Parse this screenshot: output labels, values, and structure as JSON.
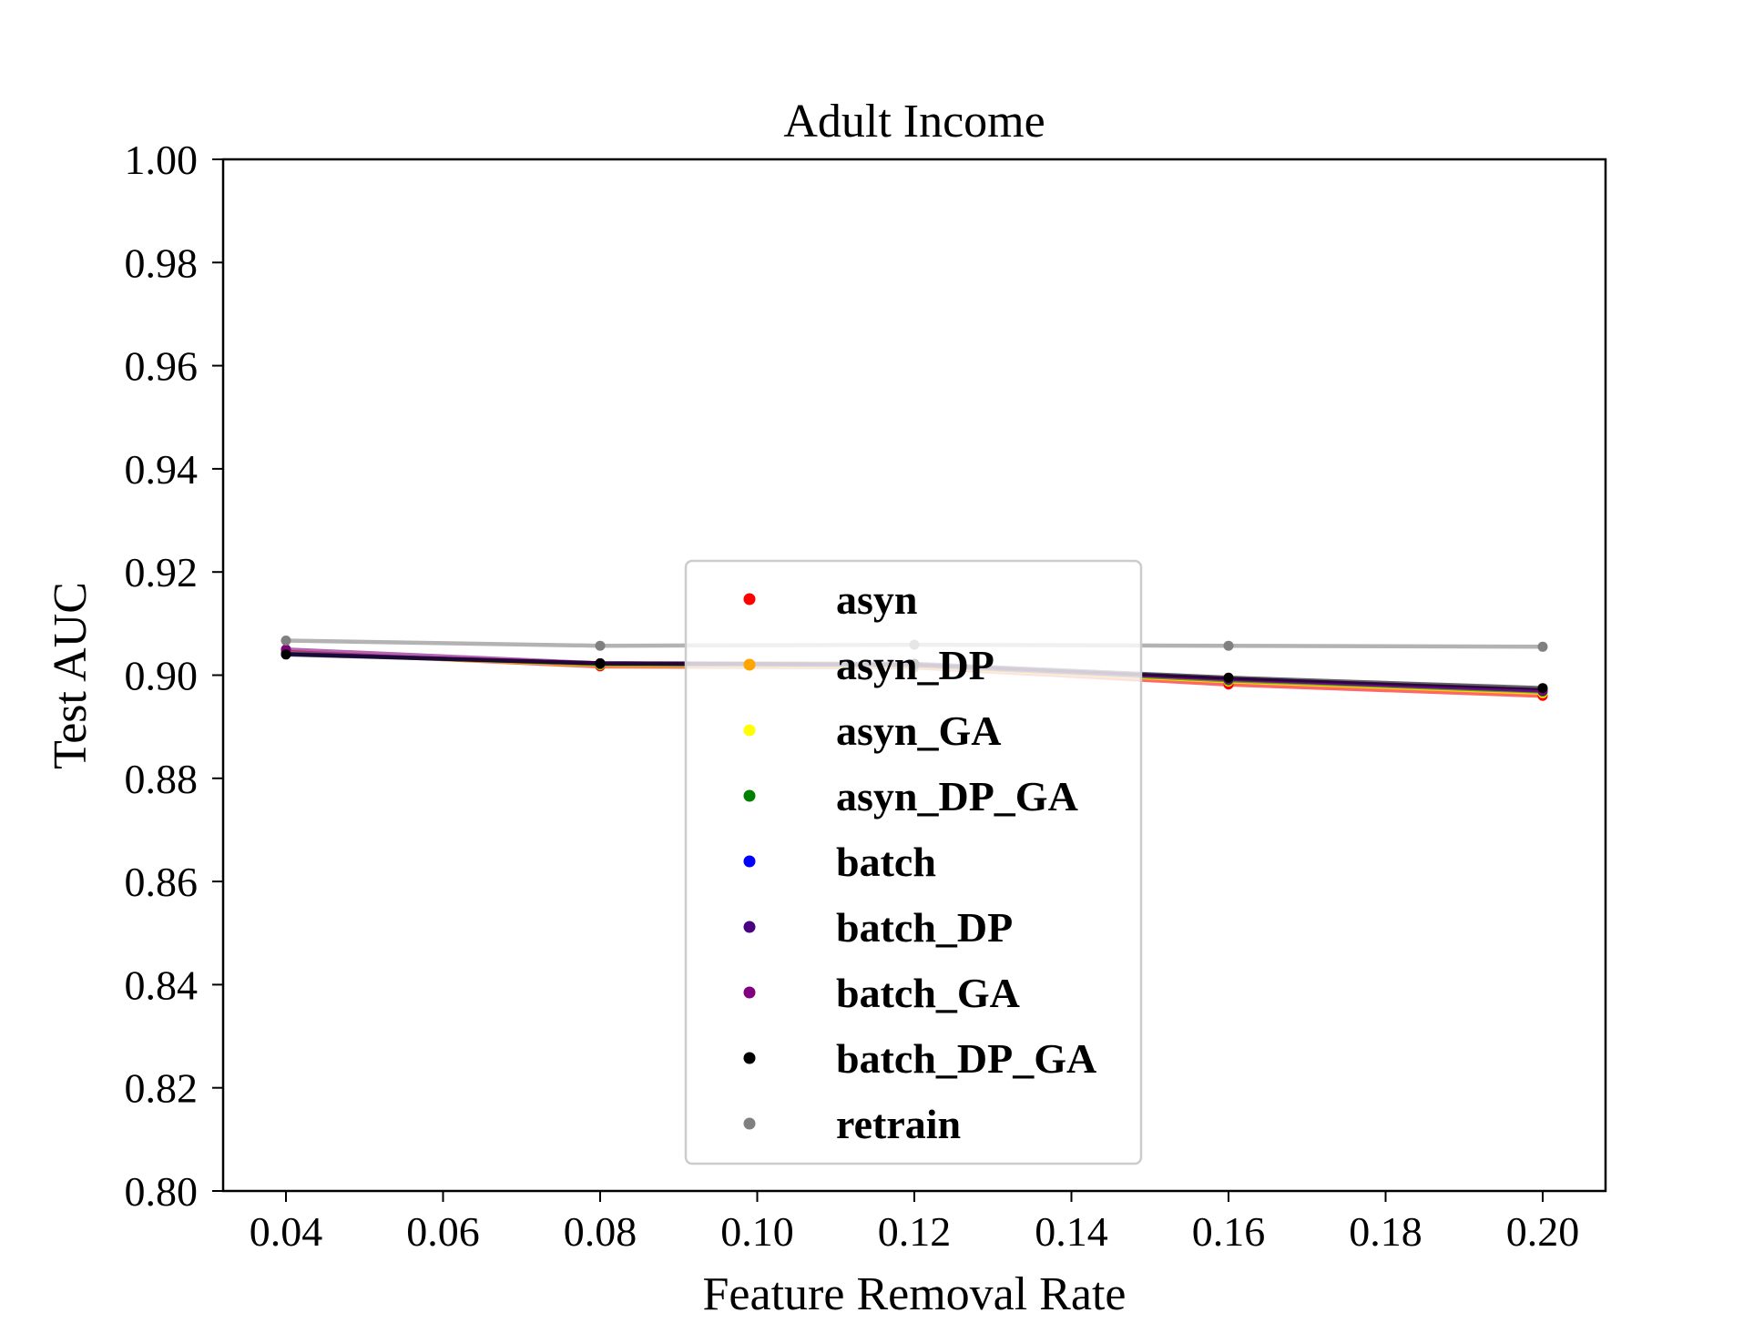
{
  "chart_data": {
    "type": "line",
    "title": "Adult Income",
    "xlabel": "Feature Removal Rate",
    "ylabel": "Test AUC",
    "xlim": [
      0.032,
      0.208
    ],
    "ylim": [
      0.8,
      1.0
    ],
    "x": [
      0.04,
      0.08,
      0.12,
      0.16,
      0.2
    ],
    "xticks": [
      0.04,
      0.06,
      0.08,
      0.1,
      0.12,
      0.14,
      0.16,
      0.18,
      0.2
    ],
    "xtick_labels": [
      "0.04",
      "0.06",
      "0.08",
      "0.10",
      "0.12",
      "0.14",
      "0.16",
      "0.18",
      "0.20"
    ],
    "yticks": [
      0.8,
      0.82,
      0.84,
      0.86,
      0.88,
      0.9,
      0.92,
      0.94,
      0.96,
      0.98,
      1.0
    ],
    "ytick_labels": [
      "0.80",
      "0.82",
      "0.84",
      "0.86",
      "0.88",
      "0.90",
      "0.92",
      "0.94",
      "0.96",
      "0.98",
      "1.00"
    ],
    "grid": false,
    "legend_position": "center",
    "series": [
      {
        "name": "asyn",
        "color": "#ff0000",
        "values": [
          0.9045,
          0.9017,
          0.9015,
          0.8982,
          0.896
        ]
      },
      {
        "name": "asyn_DP",
        "color": "#ffa500",
        "values": [
          0.9042,
          0.902,
          0.9017,
          0.8988,
          0.8965
        ]
      },
      {
        "name": "asyn_GA",
        "color": "#ffff00",
        "values": [
          0.9043,
          0.902,
          0.9017,
          0.8988,
          0.8966
        ]
      },
      {
        "name": "asyn_DP_GA",
        "color": "#008000",
        "values": [
          0.9042,
          0.9021,
          0.9018,
          0.899,
          0.8968
        ]
      },
      {
        "name": "batch",
        "color": "#0000ff",
        "values": [
          0.9041,
          0.9023,
          0.902,
          0.8993,
          0.897
        ]
      },
      {
        "name": "batch_DP",
        "color": "#4b0082",
        "values": [
          0.9041,
          0.9023,
          0.902,
          0.8993,
          0.8971
        ]
      },
      {
        "name": "batch_GA",
        "color": "#800080",
        "values": [
          0.905,
          0.9023,
          0.902,
          0.8992,
          0.897
        ]
      },
      {
        "name": "batch_DP_GA",
        "color": "#000000",
        "values": [
          0.904,
          0.9023,
          0.9022,
          0.8995,
          0.8975
        ]
      },
      {
        "name": "retrain",
        "color": "#808080",
        "values": [
          0.9067,
          0.9057,
          0.9059,
          0.9057,
          0.9055
        ]
      }
    ]
  }
}
